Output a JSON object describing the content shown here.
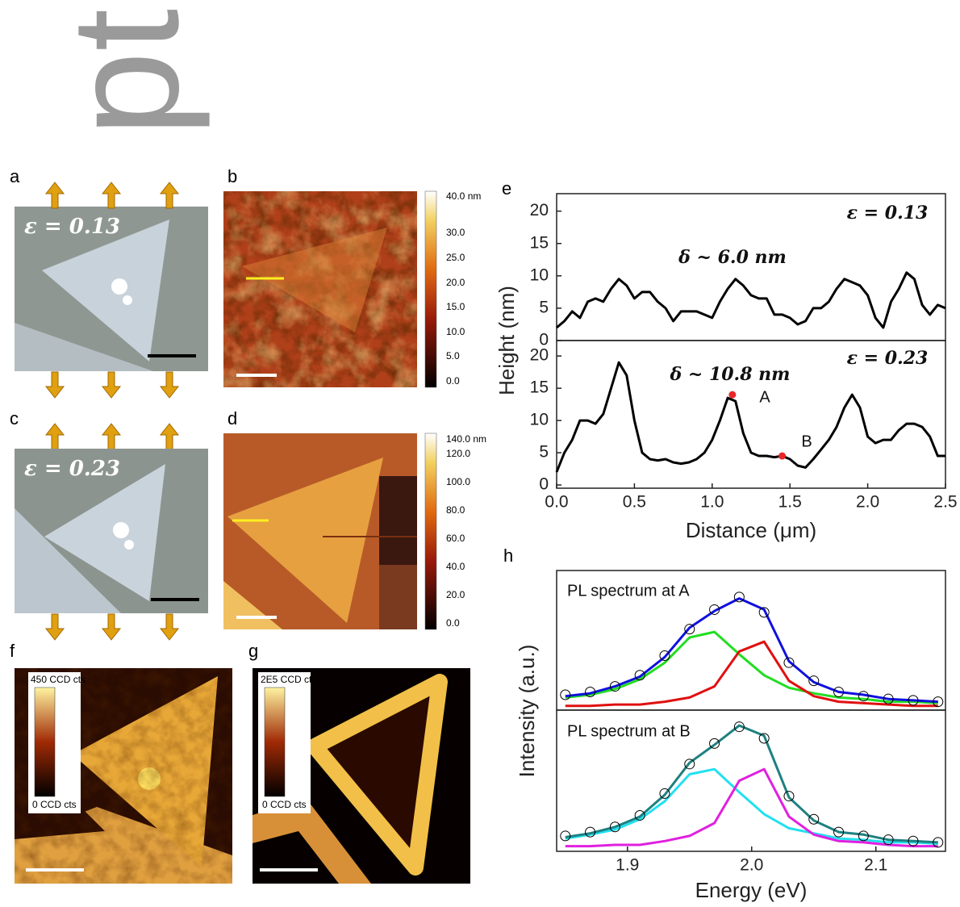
{
  "watermark": "pt",
  "panels": {
    "a": {
      "label": "a",
      "annotation": "ε = 0.13"
    },
    "b": {
      "label": "b",
      "colorbar": [
        "40.0 nm",
        "30.0",
        "25.0",
        "20.0",
        "15.0",
        "10.0",
        "5.0",
        "0.0"
      ]
    },
    "c": {
      "label": "c",
      "annotation": "ε = 0.23"
    },
    "d": {
      "label": "d",
      "colorbar": [
        "140.0 nm",
        "120.0",
        "100.0",
        "80.0",
        "60.0",
        "40.0",
        "20.0",
        "0.0"
      ]
    },
    "e": {
      "label": "e",
      "ylabel": "Height (nm)",
      "xlabel": "Distance (μm)"
    },
    "f": {
      "label": "f",
      "colorbar": [
        "450 CCD cts",
        "0 CCD cts"
      ]
    },
    "g": {
      "label": "g",
      "colorbar": [
        "2E5 CCD cts",
        "0 CCD cts"
      ]
    },
    "h": {
      "label": "h",
      "ylabel": "Intensity (a.u.)",
      "xlabel": "Energy (eV)"
    }
  },
  "chart_data": [
    {
      "type": "line",
      "xlim": [
        0,
        2.5
      ],
      "ylim": [
        0,
        22.7
      ],
      "yticks": [
        0,
        5,
        10,
        15,
        20
      ],
      "annotations": [
        "ε = 0.13",
        "δ ~ 6.0 nm"
      ],
      "x": [
        0,
        0.05,
        0.1,
        0.15,
        0.2,
        0.25,
        0.3,
        0.35,
        0.4,
        0.45,
        0.5,
        0.55,
        0.6,
        0.65,
        0.7,
        0.75,
        0.8,
        0.85,
        0.9,
        0.95,
        1.0,
        1.05,
        1.1,
        1.15,
        1.2,
        1.25,
        1.3,
        1.35,
        1.4,
        1.45,
        1.5,
        1.55,
        1.6,
        1.65,
        1.7,
        1.75,
        1.8,
        1.85,
        1.9,
        1.95,
        2.0,
        2.05,
        2.1,
        2.15,
        2.2,
        2.25,
        2.3,
        2.35,
        2.4,
        2.45,
        2.5
      ],
      "series": [
        {
          "color": "#000000",
          "values": [
            2,
            3,
            4.5,
            3.5,
            6,
            6.5,
            6,
            8,
            9.5,
            8.5,
            6.5,
            7.5,
            7.5,
            6,
            5,
            3,
            4.5,
            4.5,
            4.5,
            4,
            3.5,
            6,
            8,
            9.5,
            8.5,
            7,
            6.5,
            6.5,
            4,
            4,
            3.5,
            2.5,
            3,
            5,
            5,
            6,
            8,
            9.5,
            9,
            8.5,
            7,
            3.5,
            2,
            6,
            8,
            10.5,
            9.5,
            5.5,
            4,
            5.5,
            5
          ]
        }
      ]
    },
    {
      "type": "line",
      "xlim": [
        0,
        2.5
      ],
      "ylim": [
        -0.5,
        22.4
      ],
      "yticks": [
        0,
        5,
        10,
        15,
        20
      ],
      "xticks": [
        {
          "value": 0,
          "label": "0.0"
        },
        0.5,
        {
          "value": 1,
          "label": "1.0"
        },
        1.5,
        {
          "value": 2,
          "label": "2.0"
        },
        2.5
      ],
      "annotations": [
        "ε = 0.23",
        "δ ~ 10.8 nm",
        "A",
        "B"
      ],
      "x": [
        0,
        0.05,
        0.1,
        0.15,
        0.2,
        0.25,
        0.3,
        0.35,
        0.4,
        0.45,
        0.5,
        0.55,
        0.6,
        0.65,
        0.7,
        0.75,
        0.8,
        0.85,
        0.9,
        0.95,
        1.0,
        1.05,
        1.1,
        1.15,
        1.2,
        1.25,
        1.3,
        1.35,
        1.4,
        1.45,
        1.5,
        1.55,
        1.6,
        1.65,
        1.7,
        1.75,
        1.8,
        1.85,
        1.9,
        1.95,
        2.0,
        2.05,
        2.1,
        2.15,
        2.2,
        2.25,
        2.3,
        2.35,
        2.4,
        2.45,
        2.5
      ],
      "series": [
        {
          "color": "#000000",
          "values": [
            2,
            5,
            7,
            10,
            10,
            9.5,
            11,
            15,
            19,
            17,
            10,
            5,
            4,
            3.8,
            4,
            3.5,
            3.3,
            3.5,
            4,
            5,
            7,
            10,
            13.5,
            13,
            8,
            5,
            4.5,
            4.5,
            4.3,
            4.5,
            4,
            3,
            2.7,
            4,
            5.5,
            7,
            9,
            12,
            14,
            12,
            7.5,
            6.5,
            7,
            7,
            8.5,
            9.5,
            9.5,
            9,
            7.5,
            4.5,
            4.5
          ]
        }
      ],
      "points": {
        "color": "#e8262a",
        "x": [
          1.13,
          1.45
        ],
        "values": [
          14,
          4.5
        ]
      }
    },
    {
      "type": "line",
      "xlim": [
        1.843,
        2.156
      ],
      "ylim": [
        0,
        1
      ],
      "annotations": [
        "PL spectrum at A"
      ],
      "x": [
        1.85,
        1.87,
        1.89,
        1.91,
        1.93,
        1.95,
        1.97,
        1.99,
        2.01,
        2.03,
        2.05,
        2.07,
        2.09,
        2.11,
        2.13,
        2.15
      ],
      "series": [
        {
          "color": "#22dd22",
          "values": [
            0.09,
            0.11,
            0.15,
            0.22,
            0.34,
            0.52,
            0.56,
            0.4,
            0.25,
            0.16,
            0.12,
            0.09,
            0.08,
            0.06,
            0.06,
            0.05
          ]
        },
        {
          "color": "#e01010",
          "values": [
            0.03,
            0.03,
            0.04,
            0.04,
            0.06,
            0.09,
            0.17,
            0.42,
            0.49,
            0.21,
            0.1,
            0.06,
            0.05,
            0.04,
            0.03,
            0.03
          ]
        },
        {
          "color": "#1010e0",
          "values": [
            0.1,
            0.12,
            0.17,
            0.24,
            0.38,
            0.59,
            0.71,
            0.8,
            0.72,
            0.35,
            0.2,
            0.13,
            0.11,
            0.08,
            0.07,
            0.06
          ]
        },
        {
          "color": "#000000",
          "marker": "circle",
          "values": [
            0.11,
            0.13,
            0.17,
            0.25,
            0.39,
            0.58,
            0.72,
            0.81,
            0.7,
            0.34,
            0.21,
            0.13,
            0.1,
            0.08,
            0.07,
            0.06
          ]
        }
      ]
    },
    {
      "type": "line",
      "xlim": [
        1.843,
        2.156
      ],
      "ylim": [
        0,
        1.1
      ],
      "xticks": [
        1.9,
        {
          "value": 2,
          "label": "2.0"
        },
        2.1
      ],
      "annotations": [
        "PL spectrum at B"
      ],
      "x": [
        1.85,
        1.87,
        1.89,
        1.91,
        1.93,
        1.95,
        1.97,
        1.99,
        2.01,
        2.03,
        2.05,
        2.07,
        2.09,
        2.11,
        2.13,
        2.15
      ],
      "series": [
        {
          "color": "#22e0f0",
          "values": [
            0.1,
            0.13,
            0.17,
            0.25,
            0.39,
            0.6,
            0.64,
            0.46,
            0.29,
            0.18,
            0.14,
            0.1,
            0.09,
            0.07,
            0.07,
            0.06
          ]
        },
        {
          "color": "#e020e0",
          "values": [
            0.04,
            0.04,
            0.05,
            0.05,
            0.08,
            0.12,
            0.22,
            0.55,
            0.64,
            0.27,
            0.13,
            0.08,
            0.07,
            0.05,
            0.04,
            0.04
          ]
        },
        {
          "color": "#1e8080",
          "values": [
            0.11,
            0.14,
            0.19,
            0.27,
            0.44,
            0.69,
            0.83,
            0.98,
            0.9,
            0.42,
            0.24,
            0.15,
            0.13,
            0.09,
            0.08,
            0.07
          ]
        },
        {
          "color": "#000000",
          "marker": "circle",
          "values": [
            0.12,
            0.15,
            0.19,
            0.28,
            0.45,
            0.68,
            0.84,
            0.97,
            0.88,
            0.43,
            0.25,
            0.15,
            0.12,
            0.09,
            0.08,
            0.07
          ]
        }
      ]
    }
  ]
}
